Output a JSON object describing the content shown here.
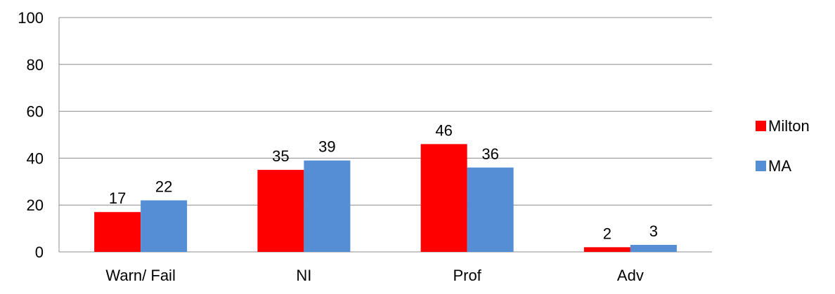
{
  "chart_data": {
    "type": "bar",
    "categories": [
      "Warn/ Fail",
      "NI",
      "Prof",
      "Adv"
    ],
    "series": [
      {
        "name": "Milton",
        "values": [
          17,
          35,
          46,
          2
        ],
        "color": "#ff0000"
      },
      {
        "name": "MA",
        "values": [
          22,
          39,
          36,
          3
        ],
        "color": "#558ed5"
      }
    ],
    "ylim": [
      0,
      100
    ],
    "yticks": [
      0,
      20,
      40,
      60,
      80,
      100
    ],
    "grid": true,
    "legend_position": "right",
    "data_labels": true
  }
}
